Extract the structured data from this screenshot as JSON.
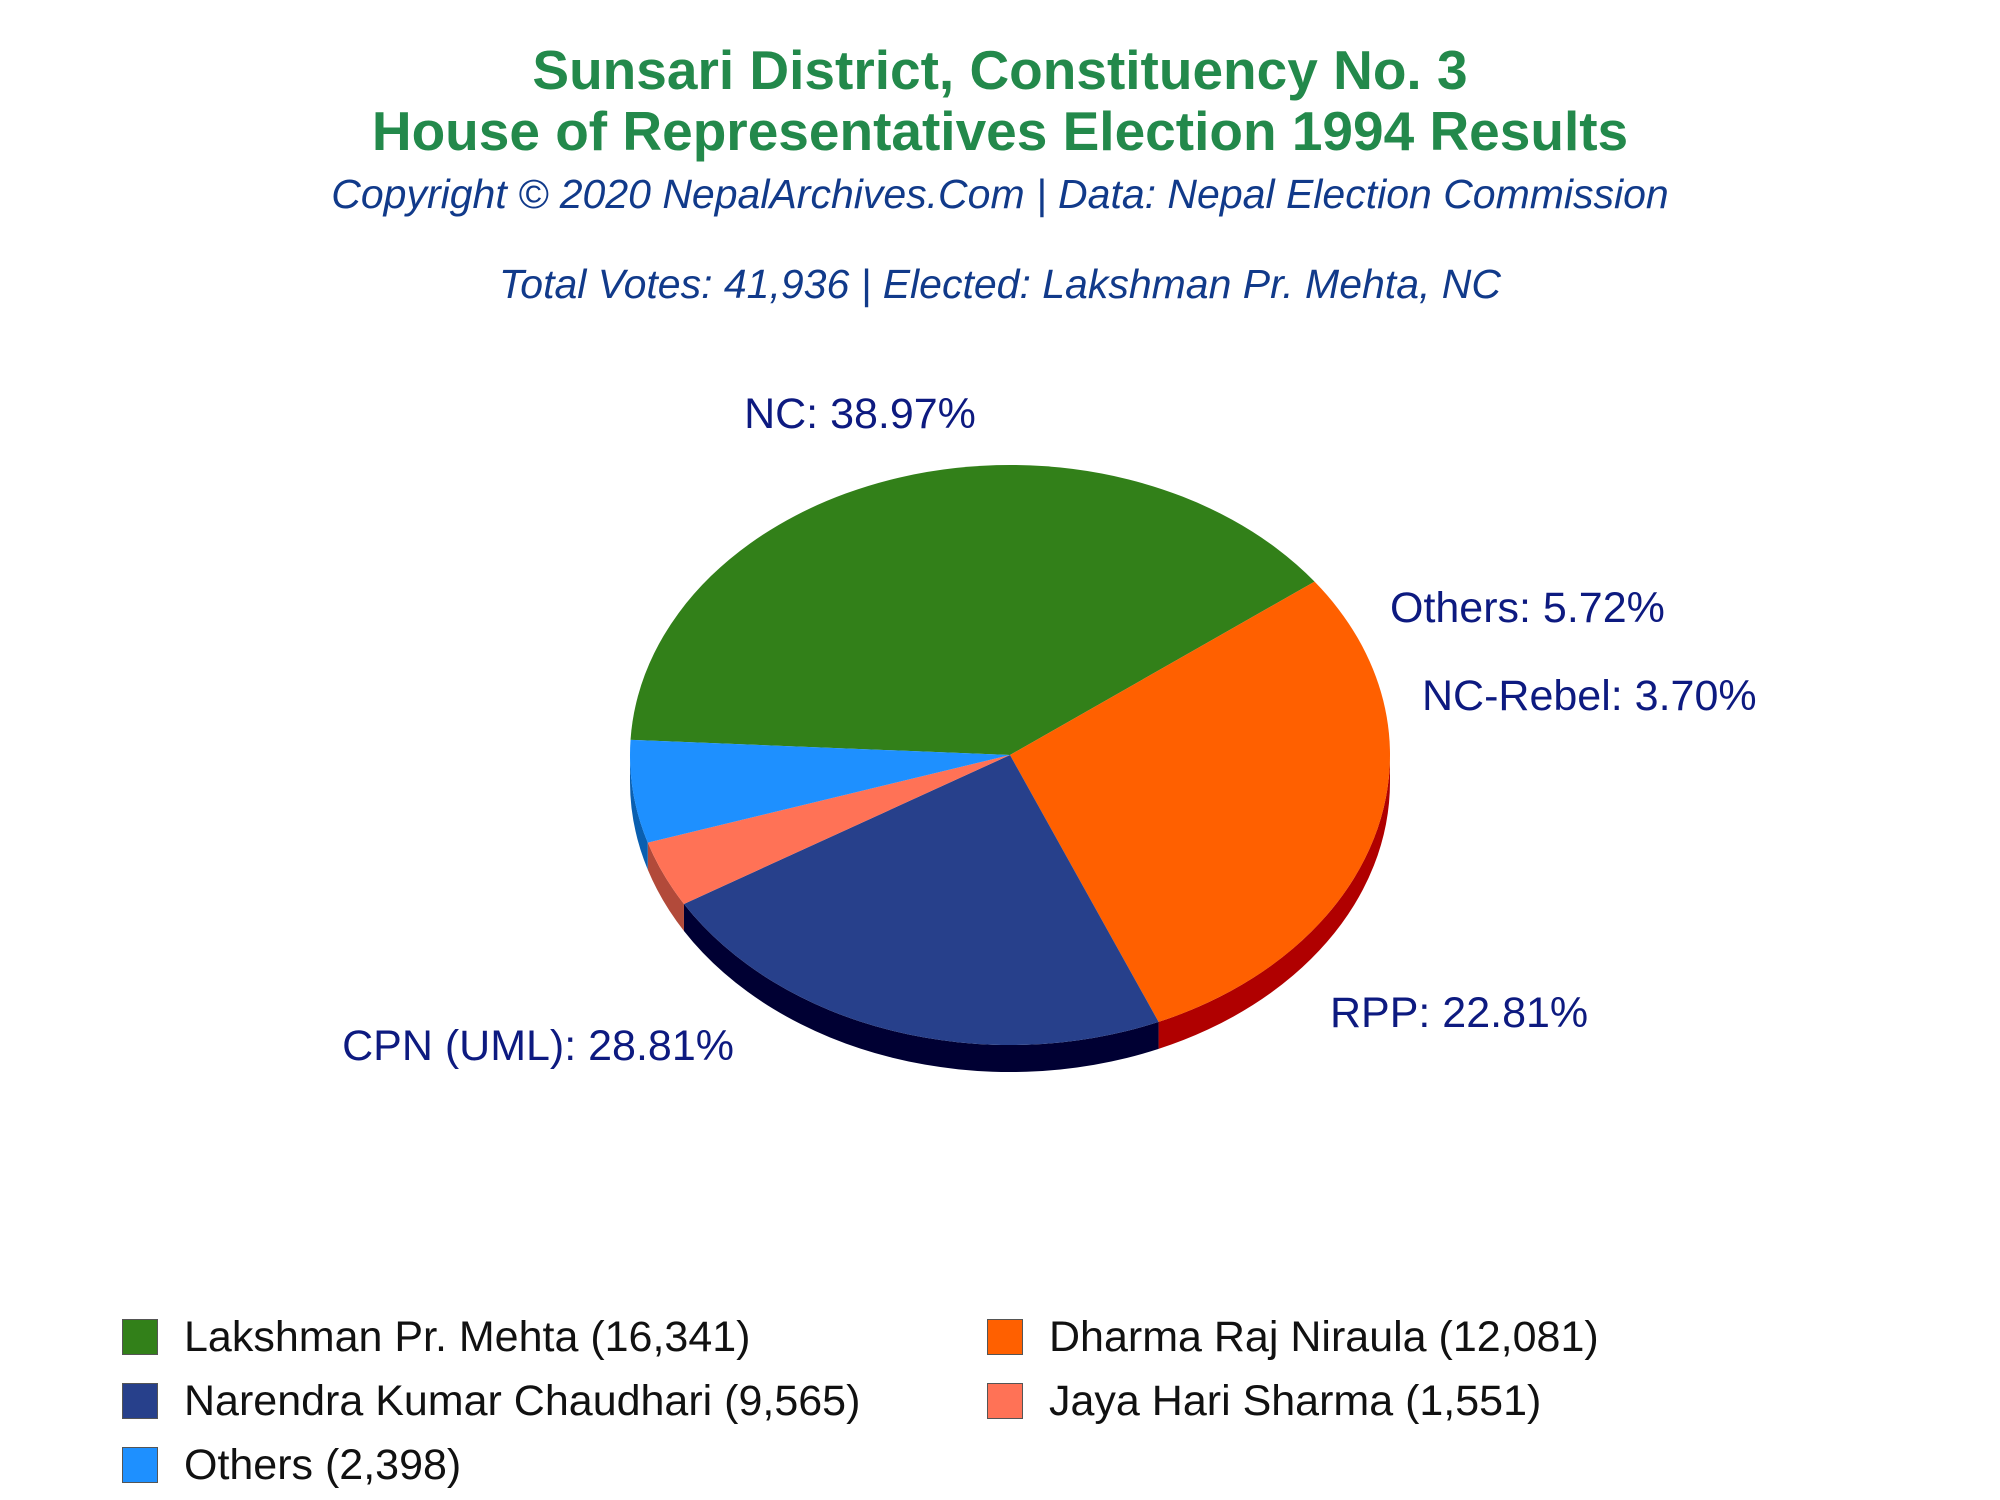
{
  "header": {
    "title_line1": "Sunsari District, Constituency No. 3",
    "title_line2": "House of Representatives Election 1994 Results",
    "copyright": "Copyright © 2020 NepalArchives.Com | Data: Nepal Election Commission",
    "totals": "Total Votes: 41,936 | Elected: Lakshman Pr. Mehta, NC"
  },
  "chart_data": {
    "type": "pie",
    "style": "3d",
    "total_votes": 41936,
    "slices": [
      {
        "label": "NC",
        "percent": 38.97,
        "percent_label": "NC: 38.97%",
        "color": "#328019",
        "side_color": "#1f5410"
      },
      {
        "label": "CPN (UML)",
        "percent": 28.81,
        "percent_label": "CPN (UML): 28.81%",
        "color": "#ff6000",
        "side_color": "#b00000"
      },
      {
        "label": "RPP",
        "percent": 22.81,
        "percent_label": "RPP: 22.81%",
        "color": "#27408b",
        "side_color": "#000033"
      },
      {
        "label": "NC-Rebel",
        "percent": 3.7,
        "percent_label": "NC-Rebel: 3.70%",
        "color": "#ff7256",
        "side_color": "#b24a3a"
      },
      {
        "label": "Others",
        "percent": 5.72,
        "percent_label": "Others: 5.72%",
        "color": "#1e90ff",
        "side_color": "#0a5fb0"
      }
    ],
    "legend": [
      {
        "text": "Lakshman Pr. Mehta (16,341)",
        "color": "#328019"
      },
      {
        "text": "Dharma Raj Niraula (12,081)",
        "color": "#ff6000"
      },
      {
        "text": "Narendra Kumar Chaudhari (9,565)",
        "color": "#27408b"
      },
      {
        "text": "Jaya Hari Sharma (1,551)",
        "color": "#ff7256"
      },
      {
        "text": "Others (2,398)",
        "color": "#1e90ff"
      }
    ],
    "label_color": "#0d1a80"
  }
}
